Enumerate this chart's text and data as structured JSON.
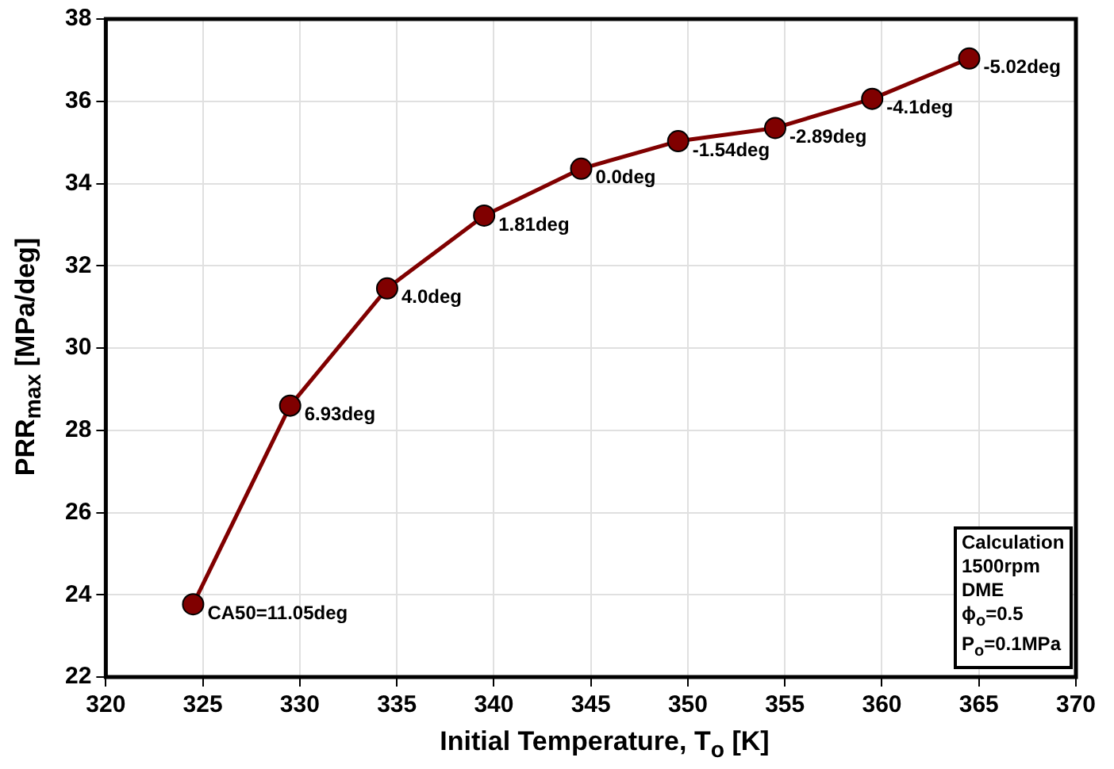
{
  "chart_data": {
    "type": "line",
    "xlabel": "Initial Temperature, T$_{o}$ [K]",
    "ylabel": "PRR$_{max}$ [MPa/deg]",
    "x": [
      324.5,
      329.5,
      334.5,
      339.5,
      344.5,
      349.5,
      354.5,
      359.5,
      364.5
    ],
    "series": [
      {
        "color": "#800000",
        "values": [
          23.77,
          28.6,
          31.45,
          33.22,
          34.36,
          35.03,
          35.35,
          36.06,
          37.04
        ]
      }
    ],
    "xlim": [
      320,
      370
    ],
    "xticks": [
      320,
      325,
      330,
      335,
      340,
      345,
      350,
      355,
      360,
      365,
      370
    ],
    "ylim": [
      22,
      38
    ],
    "yticks": [
      22,
      24,
      26,
      28,
      30,
      32,
      34,
      36,
      38
    ],
    "grid": true,
    "legend": false,
    "marker": "circle",
    "line_style": "solid",
    "annotations": [
      {
        "text": "CA50=11.05deg",
        "x": 324.5,
        "y": 23.77
      },
      {
        "text": "6.93deg",
        "x": 329.5,
        "y": 28.6
      },
      {
        "text": "4.0deg",
        "x": 334.5,
        "y": 31.45
      },
      {
        "text": "1.81deg",
        "x": 339.5,
        "y": 33.22
      },
      {
        "text": "0.0deg",
        "x": 344.5,
        "y": 34.36
      },
      {
        "text": "-1.54deg",
        "x": 349.5,
        "y": 35.03
      },
      {
        "text": "-2.89deg",
        "x": 354.5,
        "y": 35.35
      },
      {
        "text": "-4.1deg",
        "x": 359.5,
        "y": 36.06
      },
      {
        "text": "-5.02deg",
        "x": 364.5,
        "y": 37.04
      },
      "Calculation",
      "1500rpm",
      "DME",
      "ϕ$_{o}$=0.5",
      "P$_{o}$=0.1MPa"
    ]
  }
}
